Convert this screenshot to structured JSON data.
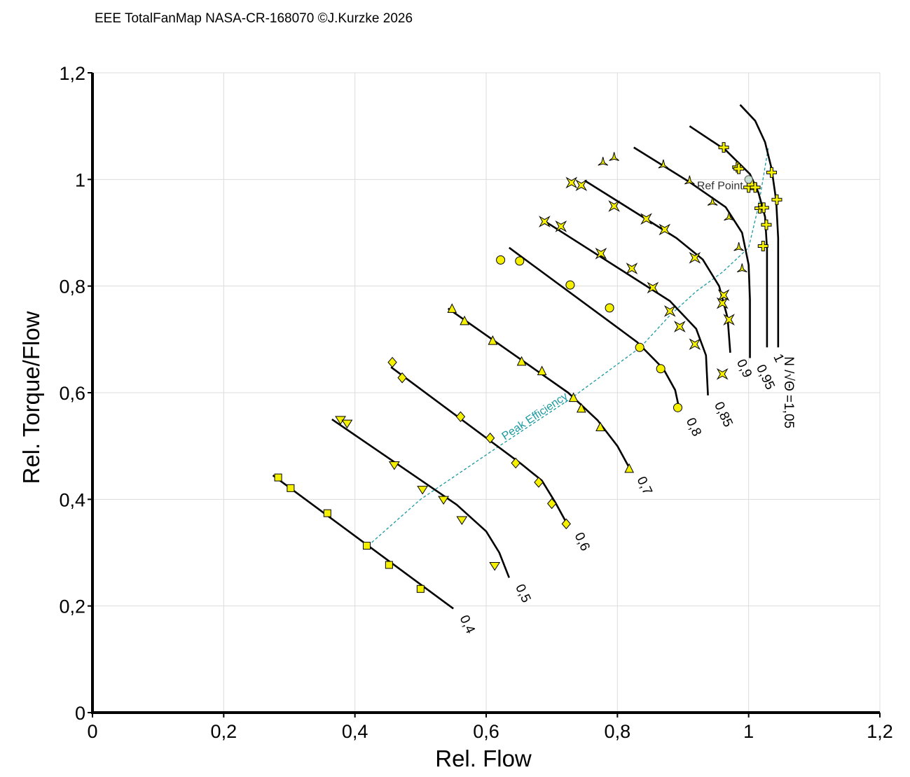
{
  "header": {
    "title": "EEE TotalFanMap NASA-CR-168070 ©J.Kurzke 2026"
  },
  "chart_data": {
    "type": "line",
    "title": "EEE TotalFanMap NASA-CR-168070 ©J.Kurzke 2026",
    "xlabel": "Rel. Flow",
    "ylabel": "Rel. Torque/Flow",
    "xlim": [
      0,
      1.2
    ],
    "ylim": [
      0,
      1.2
    ],
    "xticks": [
      0,
      0.2,
      0.4,
      0.6,
      0.8,
      1,
      1.2
    ],
    "yticks": [
      0,
      0.2,
      0.4,
      0.6,
      0.8,
      1,
      1.2
    ],
    "xtick_labels": [
      "0",
      "0,2",
      "0,4",
      "0,6",
      "0,8",
      "1",
      "1,2"
    ],
    "ytick_labels": [
      "0",
      "0,2",
      "0,4",
      "0,6",
      "0,8",
      "1",
      "1,2"
    ],
    "grid": true,
    "colors": {
      "lines": "#000000",
      "markers": "#f5f000",
      "peak": "#1a9aa0",
      "ref": "#c8e0d4"
    },
    "speed_label_prefix": "N /√Θ =",
    "series": [
      {
        "name": "0,4",
        "label": "0,4",
        "line": [
          [
            0.275,
            0.445
          ],
          [
            0.55,
            0.195
          ]
        ],
        "marker": "square",
        "points": [
          [
            0.283,
            0.441
          ],
          [
            0.302,
            0.421
          ],
          [
            0.358,
            0.374
          ],
          [
            0.418,
            0.313
          ],
          [
            0.452,
            0.277
          ],
          [
            0.5,
            0.232
          ]
        ]
      },
      {
        "name": "0,5",
        "label": "0,5",
        "line": [
          [
            0.365,
            0.55
          ],
          [
            0.555,
            0.39
          ],
          [
            0.6,
            0.34
          ],
          [
            0.62,
            0.3
          ],
          [
            0.635,
            0.253
          ]
        ],
        "marker": "triangle-down",
        "points": [
          [
            0.378,
            0.549
          ],
          [
            0.388,
            0.542
          ],
          [
            0.46,
            0.464
          ],
          [
            0.503,
            0.418
          ],
          [
            0.535,
            0.399
          ],
          [
            0.563,
            0.361
          ],
          [
            0.613,
            0.275
          ]
        ]
      },
      {
        "name": "0,6",
        "label": "0,6",
        "line": [
          [
            0.455,
            0.648
          ],
          [
            0.655,
            0.465
          ],
          [
            0.685,
            0.435
          ],
          [
            0.705,
            0.395
          ],
          [
            0.725,
            0.35
          ]
        ],
        "marker": "diamond",
        "points": [
          [
            0.457,
            0.657
          ],
          [
            0.472,
            0.628
          ],
          [
            0.561,
            0.555
          ],
          [
            0.606,
            0.515
          ],
          [
            0.645,
            0.468
          ],
          [
            0.68,
            0.432
          ],
          [
            0.7,
            0.392
          ],
          [
            0.722,
            0.354
          ]
        ]
      },
      {
        "name": "0,7",
        "label": "0,7",
        "line": [
          [
            0.542,
            0.758
          ],
          [
            0.725,
            0.6
          ],
          [
            0.77,
            0.548
          ],
          [
            0.8,
            0.5
          ],
          [
            0.82,
            0.455
          ]
        ],
        "marker": "triangle-up",
        "points": [
          [
            0.548,
            0.757
          ],
          [
            0.567,
            0.734
          ],
          [
            0.61,
            0.697
          ],
          [
            0.654,
            0.658
          ],
          [
            0.685,
            0.64
          ],
          [
            0.733,
            0.59
          ],
          [
            0.745,
            0.57
          ],
          [
            0.774,
            0.535
          ],
          [
            0.818,
            0.457
          ]
        ]
      },
      {
        "name": "0,8",
        "label": "0,8",
        "line": [
          [
            0.635,
            0.872
          ],
          [
            0.83,
            0.695
          ],
          [
            0.87,
            0.645
          ],
          [
            0.888,
            0.605
          ],
          [
            0.895,
            0.565
          ]
        ],
        "marker": "circle",
        "points": [
          [
            0.622,
            0.849
          ],
          [
            0.651,
            0.847
          ],
          [
            0.728,
            0.802
          ],
          [
            0.788,
            0.759
          ],
          [
            0.834,
            0.685
          ],
          [
            0.866,
            0.645
          ],
          [
            0.892,
            0.572
          ]
        ]
      },
      {
        "name": "0,85",
        "label": "0,85",
        "line": [
          [
            0.685,
            0.925
          ],
          [
            0.88,
            0.772
          ],
          [
            0.92,
            0.72
          ],
          [
            0.935,
            0.67
          ],
          [
            0.938,
            0.595
          ]
        ],
        "marker": "star4",
        "points": [
          [
            0.689,
            0.921
          ],
          [
            0.714,
            0.912
          ],
          [
            0.775,
            0.861
          ],
          [
            0.822,
            0.833
          ],
          [
            0.854,
            0.797
          ],
          [
            0.88,
            0.753
          ],
          [
            0.895,
            0.724
          ],
          [
            0.918,
            0.691
          ]
        ]
      },
      {
        "name": "0,9",
        "label": "0,9",
        "line": [
          [
            0.75,
            0.998
          ],
          [
            0.89,
            0.89
          ],
          [
            0.93,
            0.85
          ],
          [
            0.955,
            0.8
          ],
          [
            0.968,
            0.74
          ],
          [
            0.972,
            0.675
          ]
        ],
        "marker": "star4",
        "points": [
          [
            0.73,
            0.994
          ],
          [
            0.745,
            0.989
          ],
          [
            0.795,
            0.95
          ],
          [
            0.844,
            0.926
          ],
          [
            0.872,
            0.906
          ],
          [
            0.918,
            0.853
          ],
          [
            0.962,
            0.783
          ],
          [
            0.96,
            0.768
          ],
          [
            0.97,
            0.737
          ],
          [
            0.96,
            0.635
          ]
        ]
      },
      {
        "name": "0,95",
        "label": "0,95",
        "line": [
          [
            0.825,
            1.06
          ],
          [
            0.91,
            0.995
          ],
          [
            0.965,
            0.948
          ],
          [
            0.99,
            0.9
          ],
          [
            1.0,
            0.84
          ],
          [
            1.002,
            0.775
          ],
          [
            1.002,
            0.665
          ]
        ],
        "marker": "triangle3",
        "points": [
          [
            0.778,
            1.033
          ],
          [
            0.795,
            1.042
          ],
          [
            0.87,
            1.028
          ],
          [
            0.91,
            0.998
          ],
          [
            0.945,
            0.958
          ],
          [
            0.97,
            0.93
          ],
          [
            0.985,
            0.873
          ],
          [
            0.99,
            0.833
          ]
        ]
      },
      {
        "name": "1",
        "label": "1",
        "line": [
          [
            0.91,
            1.1
          ],
          [
            0.965,
            1.055
          ],
          [
            1.002,
            1.01
          ],
          [
            1.015,
            0.975
          ],
          [
            1.025,
            0.93
          ],
          [
            1.028,
            0.87
          ],
          [
            1.028,
            0.685
          ]
        ],
        "marker": "cross",
        "points": [
          [
            0.962,
            1.06
          ],
          [
            0.983,
            1.023
          ],
          [
            0.985,
            1.02
          ],
          [
            1.0,
            0.985
          ],
          [
            1.005,
            0.99
          ],
          [
            1.017,
            0.946
          ],
          [
            1.027,
            0.915
          ],
          [
            1.022,
            0.875
          ]
        ]
      },
      {
        "name": "1,05",
        "label": "1,05",
        "line": [
          [
            0.987,
            1.14
          ],
          [
            1.01,
            1.11
          ],
          [
            1.025,
            1.07
          ],
          [
            1.035,
            1.02
          ],
          [
            1.042,
            0.96
          ],
          [
            1.045,
            0.89
          ],
          [
            1.045,
            0.685
          ]
        ],
        "marker": "cross",
        "points": [
          [
            1.035,
            1.013
          ],
          [
            1.043,
            0.962
          ],
          [
            1.01,
            0.985
          ],
          [
            1.023,
            0.947
          ]
        ]
      }
    ],
    "peak_efficiency": {
      "label": "Peak Efficiency",
      "points": [
        [
          0.42,
          0.313
        ],
        [
          0.5,
          0.4
        ],
        [
          0.62,
          0.5
        ],
        [
          0.73,
          0.59
        ],
        [
          0.835,
          0.685
        ],
        [
          0.88,
          0.745
        ],
        [
          0.92,
          0.79
        ],
        [
          0.96,
          0.826
        ],
        [
          1.0,
          0.872
        ],
        [
          1.015,
          0.95
        ],
        [
          1.03,
          1.06
        ]
      ]
    },
    "ref_point": {
      "label": "Ref Point",
      "x": 1.0,
      "y": 1.0
    }
  }
}
